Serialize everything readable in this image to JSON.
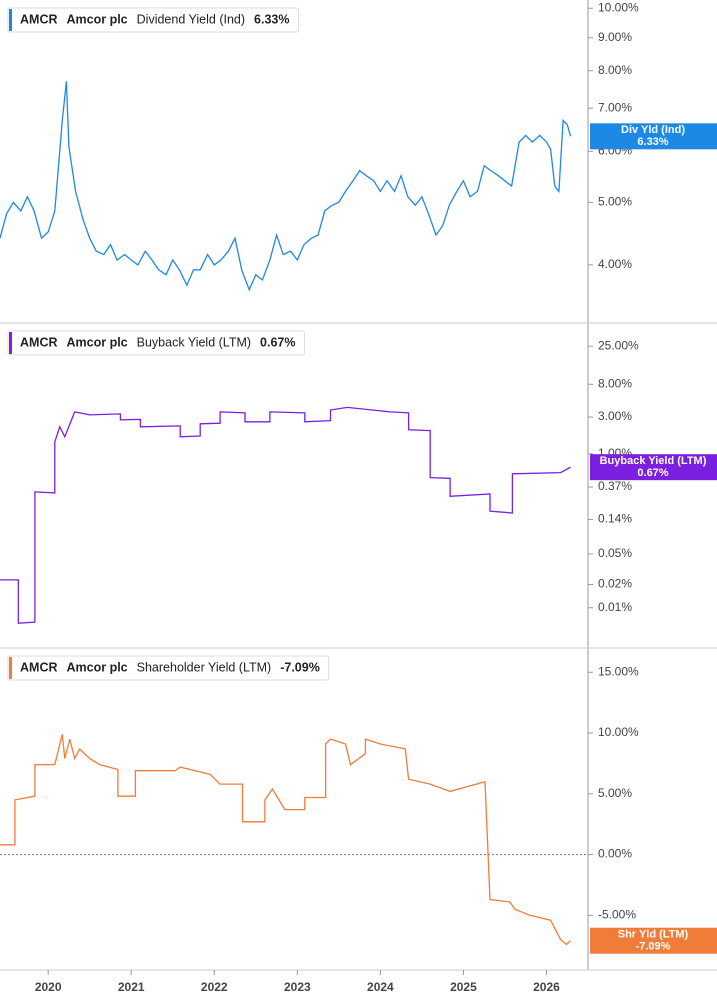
{
  "chart_data": [
    {
      "type": "line",
      "ticker": "AMCR",
      "company": "Amcor plc",
      "title": "Dividend Yield (Ind)",
      "badge": "Div Yld (Ind)",
      "current": {
        "value": 6.33,
        "label": "6.33%"
      },
      "color": "#1e88e5",
      "log_scale": true,
      "xlim": [
        2019.42,
        2026.5
      ],
      "ylim": [
        3.25,
        10.3
      ],
      "yticks": [
        {
          "value": 10,
          "label": "10.00%"
        },
        {
          "value": 9,
          "label": "9.00%"
        },
        {
          "value": 8,
          "label": "8.00%"
        },
        {
          "value": 7,
          "label": "7.00%"
        },
        {
          "value": 6,
          "label": "6.00%"
        },
        {
          "value": 5,
          "label": "5.00%"
        },
        {
          "value": 4,
          "label": "4.00%"
        }
      ],
      "x": [
        2019.42,
        2019.5,
        2019.58,
        2019.67,
        2019.75,
        2019.83,
        2019.92,
        2020.0,
        2020.08,
        2020.17,
        2020.22,
        2020.25,
        2020.33,
        2020.42,
        2020.5,
        2020.58,
        2020.67,
        2020.75,
        2020.83,
        2020.92,
        2021.0,
        2021.08,
        2021.17,
        2021.25,
        2021.33,
        2021.42,
        2021.5,
        2021.58,
        2021.67,
        2021.75,
        2021.83,
        2021.92,
        2022.0,
        2022.08,
        2022.17,
        2022.25,
        2022.33,
        2022.42,
        2022.5,
        2022.58,
        2022.67,
        2022.75,
        2022.83,
        2022.92,
        2023.0,
        2023.08,
        2023.17,
        2023.25,
        2023.33,
        2023.42,
        2023.5,
        2023.58,
        2023.67,
        2023.75,
        2023.83,
        2023.92,
        2024.0,
        2024.08,
        2024.17,
        2024.25,
        2024.33,
        2024.42,
        2024.5,
        2024.58,
        2024.67,
        2024.75,
        2024.83,
        2024.92,
        2025.0,
        2025.08,
        2025.17,
        2025.25,
        2025.33,
        2025.42,
        2025.5,
        2025.58,
        2025.67,
        2025.75,
        2025.83,
        2025.92,
        2026.0,
        2026.05,
        2026.1,
        2026.15,
        2026.2,
        2026.25,
        2026.29
      ],
      "values": [
        4.4,
        4.8,
        5.0,
        4.85,
        5.1,
        4.85,
        4.4,
        4.5,
        4.85,
        6.7,
        7.7,
        6.1,
        5.2,
        4.7,
        4.4,
        4.2,
        4.15,
        4.3,
        4.07,
        4.15,
        4.07,
        4.0,
        4.2,
        4.07,
        3.93,
        3.86,
        4.07,
        3.93,
        3.72,
        3.93,
        3.93,
        4.15,
        4.0,
        4.07,
        4.2,
        4.4,
        3.93,
        3.66,
        3.86,
        3.79,
        4.07,
        4.45,
        4.15,
        4.2,
        4.07,
        4.3,
        4.4,
        4.45,
        4.85,
        4.95,
        5.0,
        5.2,
        5.4,
        5.6,
        5.5,
        5.4,
        5.2,
        5.4,
        5.2,
        5.5,
        5.1,
        4.95,
        5.1,
        4.8,
        4.45,
        4.6,
        4.95,
        5.2,
        5.4,
        5.1,
        5.2,
        5.7,
        5.6,
        5.5,
        5.4,
        5.3,
        6.2,
        6.35,
        6.2,
        6.35,
        6.2,
        6.05,
        5.3,
        5.2,
        6.7,
        6.6,
        6.33
      ]
    },
    {
      "type": "line",
      "ticker": "AMCR",
      "company": "Amcor plc",
      "title": "Buyback Yield (LTM)",
      "badge": "Buyback Yield (LTM)",
      "current": {
        "value": 0.67,
        "label": "0.67%"
      },
      "color": "#7b1fe0",
      "log_scale": true,
      "xlim": [
        2019.42,
        2026.5
      ],
      "ylim": [
        0.003,
        50
      ],
      "yticks": [
        {
          "value": 25,
          "label": "25.00%"
        },
        {
          "value": 8,
          "label": "8.00%"
        },
        {
          "value": 3,
          "label": "3.00%"
        },
        {
          "value": 1,
          "label": "1.00%"
        },
        {
          "value": 0.37,
          "label": "0.37%"
        },
        {
          "value": 0.14,
          "label": "0.14%"
        },
        {
          "value": 0.05,
          "label": "0.05%"
        },
        {
          "value": 0.02,
          "label": "0.02%"
        },
        {
          "value": 0.01,
          "label": "0.01%"
        }
      ],
      "x": [
        2019.42,
        2019.64,
        2019.64,
        2019.84,
        2019.84,
        2020.08,
        2020.08,
        2020.14,
        2020.2,
        2020.32,
        2020.5,
        2020.87,
        2020.87,
        2021.11,
        2021.11,
        2021.59,
        2021.59,
        2021.83,
        2021.83,
        2022.07,
        2022.07,
        2022.37,
        2022.37,
        2022.67,
        2022.67,
        2023.09,
        2023.09,
        2023.4,
        2023.4,
        2023.6,
        2024.12,
        2024.34,
        2024.34,
        2024.6,
        2024.6,
        2024.84,
        2024.84,
        2025.32,
        2025.32,
        2025.59,
        2025.59,
        2026.17,
        2026.29
      ],
      "values": [
        0.023,
        0.023,
        0.0063,
        0.0065,
        0.32,
        0.31,
        1.43,
        2.24,
        1.66,
        3.5,
        3.2,
        3.3,
        2.76,
        2.8,
        2.24,
        2.3,
        1.66,
        1.7,
        2.45,
        2.5,
        3.5,
        3.4,
        2.6,
        2.6,
        3.5,
        3.4,
        2.6,
        2.7,
        3.7,
        4.0,
        3.5,
        3.4,
        2.05,
        2.0,
        0.49,
        0.48,
        0.28,
        0.3,
        0.18,
        0.17,
        0.55,
        0.57,
        0.67
      ]
    },
    {
      "type": "line",
      "ticker": "AMCR",
      "company": "Amcor plc",
      "title": "Shareholder Yield (LTM)",
      "badge": "Shr Yld (LTM)",
      "current": {
        "value": -7.09,
        "label": "-7.09%"
      },
      "color": "#f07c3a",
      "log_scale": false,
      "zero_line": true,
      "xlim": [
        2019.42,
        2026.5
      ],
      "ylim": [
        -9.5,
        17
      ],
      "yticks": [
        {
          "value": 15,
          "label": "15.00%"
        },
        {
          "value": 10,
          "label": "10.00%"
        },
        {
          "value": 5,
          "label": "5.00%"
        },
        {
          "value": 0,
          "label": "0.00%"
        },
        {
          "value": -5,
          "label": "-5.00%"
        }
      ],
      "xticks": [
        2020,
        2021,
        2022,
        2023,
        2024,
        2025,
        2026
      ],
      "x": [
        2019.42,
        2019.6,
        2019.6,
        2019.84,
        2019.84,
        2020.08,
        2020.17,
        2020.2,
        2020.26,
        2020.32,
        2020.38,
        2020.5,
        2020.62,
        2020.84,
        2020.84,
        2021.05,
        2021.05,
        2021.53,
        2021.59,
        2021.95,
        2022.01,
        2022.07,
        2022.34,
        2022.34,
        2022.61,
        2022.61,
        2022.7,
        2022.85,
        2023.09,
        2023.09,
        2023.34,
        2023.34,
        2023.4,
        2023.58,
        2023.64,
        2023.82,
        2023.82,
        2024.0,
        2024.3,
        2024.34,
        2024.6,
        2024.84,
        2025.26,
        2025.32,
        2025.56,
        2025.62,
        2025.8,
        2026.05,
        2026.17,
        2026.24,
        2026.29
      ],
      "values": [
        0.8,
        0.8,
        4.5,
        4.8,
        7.4,
        7.4,
        9.9,
        7.9,
        9.5,
        7.9,
        8.7,
        7.9,
        7.4,
        7.0,
        4.8,
        4.8,
        6.9,
        6.9,
        7.2,
        6.6,
        6.2,
        5.8,
        5.8,
        2.7,
        2.7,
        4.5,
        5.4,
        3.7,
        3.7,
        4.7,
        4.7,
        9.1,
        9.5,
        9.1,
        7.4,
        8.3,
        9.5,
        9.1,
        8.7,
        6.2,
        5.8,
        5.2,
        6.0,
        -3.7,
        -3.9,
        -4.5,
        -5.0,
        -5.4,
        -7.0,
        -7.4,
        -7.09
      ]
    }
  ]
}
